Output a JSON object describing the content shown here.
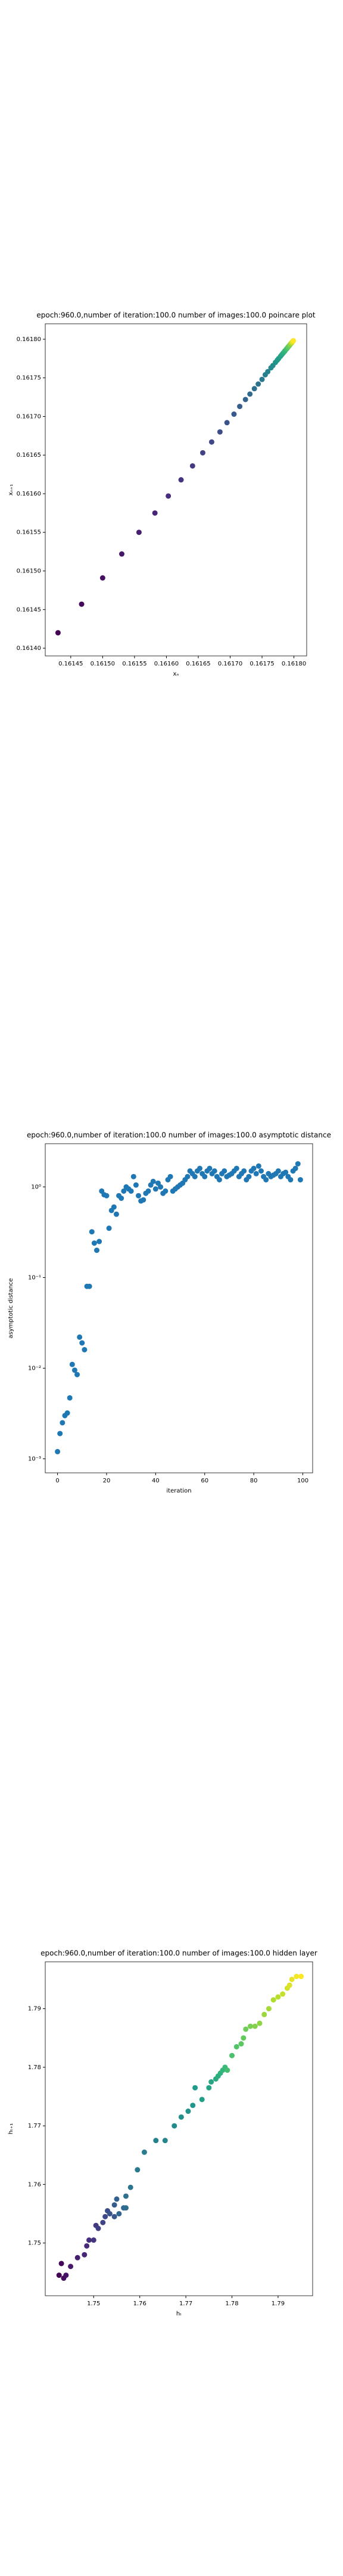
{
  "chart_data": [
    {
      "type": "scatter",
      "title": "epoch:960.0,number of iteration:100.0 number of images:100.0 poincare plot",
      "xlabel": "xₙ",
      "ylabel": "xₙ₊₁",
      "colormap": "viridis",
      "x": [
        0.16143,
        0.161467,
        0.1615,
        0.16153,
        0.161557,
        0.161582,
        0.161603,
        0.161623,
        0.161641,
        0.161657,
        0.161671,
        0.161684,
        0.161695,
        0.161706,
        0.161715,
        0.161724,
        0.161731,
        0.161738,
        0.161744,
        0.16175,
        0.161755,
        0.161759,
        0.161764,
        0.161767,
        0.161771,
        0.161774,
        0.161776,
        0.161779,
        0.161781,
        0.161783,
        0.161785,
        0.161786,
        0.161788,
        0.161789,
        0.16179,
        0.161791,
        0.161792,
        0.161793,
        0.161794,
        0.161795,
        0.161796,
        0.161796,
        0.161797,
        0.161797,
        0.161798,
        0.161798,
        0.161799,
        0.161799
      ],
      "values": [
        0.16142,
        0.161457,
        0.161491,
        0.161522,
        0.16155,
        0.161575,
        0.161597,
        0.161618,
        0.161636,
        0.161653,
        0.161667,
        0.16168,
        0.161692,
        0.161703,
        0.161713,
        0.161722,
        0.161729,
        0.161736,
        0.161742,
        0.161748,
        0.161754,
        0.161758,
        0.161763,
        0.161766,
        0.16177,
        0.161773,
        0.161775,
        0.161778,
        0.16178,
        0.161782,
        0.161784,
        0.161785,
        0.161787,
        0.161788,
        0.161789,
        0.16179,
        0.161791,
        0.161792,
        0.161793,
        0.161794,
        0.161795,
        0.161795,
        0.161796,
        0.161796,
        0.161797,
        0.161797,
        0.161798,
        0.161798
      ],
      "xlim": [
        0.16141,
        0.16182
      ],
      "ylim": [
        0.16139,
        0.16182
      ],
      "xticks": [
        0.16145,
        {
          "value": 0.1615,
          "label": "0.16150"
        },
        0.16155,
        {
          "value": 0.1616,
          "label": "0.16160"
        },
        0.16165,
        {
          "value": 0.1617,
          "label": "0.16170"
        },
        0.16175,
        {
          "value": 0.1618,
          "label": "0.16180"
        }
      ],
      "yticks": [
        {
          "value": 0.1614,
          "label": "0.16140"
        },
        0.16145,
        {
          "value": 0.1615,
          "label": "0.16150"
        },
        0.16155,
        {
          "value": 0.1616,
          "label": "0.16160"
        },
        0.16165,
        {
          "value": 0.1617,
          "label": "0.16170"
        },
        0.16175,
        {
          "value": 0.1618,
          "label": "0.16180"
        }
      ]
    },
    {
      "type": "scatter",
      "title": "epoch:960.0,number of iteration:100.0  number of images:100.0 asymptotic distance",
      "xlabel": "iteration",
      "ylabel": "asymptotic distance",
      "color": "#1f77b4",
      "yscale": "log",
      "x": [
        0,
        1,
        2,
        3,
        4,
        5,
        6,
        7,
        8,
        9,
        10,
        11,
        12,
        13,
        14,
        15,
        16,
        17,
        18,
        19,
        20,
        21,
        22,
        23,
        24,
        25,
        26,
        27,
        28,
        29,
        30,
        31,
        32,
        33,
        34,
        35,
        36,
        37,
        38,
        39,
        40,
        41,
        42,
        43,
        44,
        45,
        46,
        47,
        48,
        49,
        50,
        51,
        52,
        53,
        54,
        55,
        56,
        57,
        58,
        59,
        60,
        61,
        62,
        63,
        64,
        65,
        66,
        67,
        68,
        69,
        70,
        71,
        72,
        73,
        74,
        75,
        76,
        77,
        78,
        79,
        80,
        81,
        82,
        83,
        84,
        85,
        86,
        87,
        88,
        89,
        90,
        91,
        92,
        93,
        94,
        95,
        96,
        97,
        98,
        99
      ],
      "values": [
        0.0012,
        0.0019,
        0.0025,
        0.003,
        0.0032,
        0.0047,
        0.011,
        0.0095,
        0.0085,
        0.022,
        0.019,
        0.016,
        0.08,
        0.08,
        0.32,
        0.24,
        0.2,
        0.25,
        0.9,
        0.82,
        0.8,
        0.35,
        0.55,
        0.6,
        0.5,
        0.8,
        0.75,
        0.9,
        1.0,
        0.95,
        0.9,
        1.3,
        1.05,
        0.8,
        0.7,
        0.72,
        0.85,
        0.9,
        1.05,
        1.15,
        0.95,
        1.1,
        1.0,
        0.85,
        0.9,
        1.2,
        1.3,
        0.9,
        0.95,
        1.0,
        1.05,
        1.1,
        1.2,
        1.3,
        1.5,
        1.4,
        1.3,
        1.5,
        1.6,
        1.4,
        1.3,
        1.5,
        1.6,
        1.4,
        1.5,
        1.3,
        1.2,
        1.4,
        1.5,
        1.3,
        1.35,
        1.4,
        1.5,
        1.6,
        1.3,
        1.4,
        1.5,
        1.2,
        1.3,
        1.5,
        1.6,
        1.4,
        1.7,
        1.5,
        1.3,
        1.2,
        1.4,
        1.3,
        1.35,
        1.4,
        1.5,
        1.3,
        1.4,
        1.45,
        1.3,
        1.2,
        1.5,
        1.6,
        1.8,
        1.2
      ],
      "xlim": [
        -5,
        104
      ],
      "ylim": [
        0.0007,
        3
      ],
      "xticks": [
        0,
        20,
        40,
        60,
        80,
        100
      ],
      "yticks": [
        {
          "value": 0.001,
          "label": "10⁻³"
        },
        {
          "value": 0.01,
          "label": "10⁻²"
        },
        {
          "value": 0.1,
          "label": "10⁻¹"
        },
        {
          "value": 1,
          "label": "10⁰"
        }
      ]
    },
    {
      "type": "scatter",
      "title": "epoch:960.0,number of iteration:100.0  number of images:100.0 hidden layer",
      "xlabel": "hₜ",
      "ylabel": "hₜ₊₁",
      "colormap": "viridis",
      "x": [
        1.7425,
        1.743,
        1.7435,
        1.744,
        1.745,
        1.7465,
        1.748,
        1.7485,
        1.749,
        1.75,
        1.7505,
        1.751,
        1.752,
        1.7525,
        1.753,
        1.7535,
        1.7545,
        1.7545,
        1.755,
        1.7555,
        1.7565,
        1.757,
        1.757,
        1.758,
        1.7595,
        1.761,
        1.7635,
        1.7655,
        1.7675,
        1.769,
        1.7705,
        1.7715,
        1.772,
        1.7735,
        1.775,
        1.7755,
        1.7765,
        1.777,
        1.7775,
        1.778,
        1.7785,
        1.779,
        1.78,
        1.781,
        1.782,
        1.7825,
        1.783,
        1.784,
        1.785,
        1.786,
        1.787,
        1.788,
        1.789,
        1.79,
        1.791,
        1.792,
        1.7925,
        1.793,
        1.794,
        1.795
      ],
      "values": [
        1.7445,
        1.7465,
        1.744,
        1.7445,
        1.746,
        1.7475,
        1.748,
        1.7495,
        1.7505,
        1.7505,
        1.753,
        1.7525,
        1.7535,
        1.7545,
        1.7555,
        1.755,
        1.7545,
        1.7565,
        1.7575,
        1.755,
        1.756,
        1.756,
        1.758,
        1.7595,
        1.7625,
        1.7655,
        1.7675,
        1.7675,
        1.77,
        1.7715,
        1.7725,
        1.7735,
        1.7765,
        1.7745,
        1.7765,
        1.7775,
        1.778,
        1.7785,
        1.779,
        1.7795,
        1.78,
        1.7795,
        1.782,
        1.7835,
        1.784,
        1.785,
        1.7865,
        1.787,
        1.787,
        1.7875,
        1.789,
        1.79,
        1.7915,
        1.792,
        1.7925,
        1.7935,
        1.794,
        1.795,
        1.7955,
        1.7955
      ],
      "xlim": [
        1.7395,
        1.7975
      ],
      "ylim": [
        1.741,
        1.798
      ],
      "xticks": [
        1.75,
        1.76,
        1.77,
        1.78,
        1.79
      ],
      "yticks": [
        1.75,
        1.76,
        1.77,
        1.78,
        1.79
      ]
    }
  ]
}
